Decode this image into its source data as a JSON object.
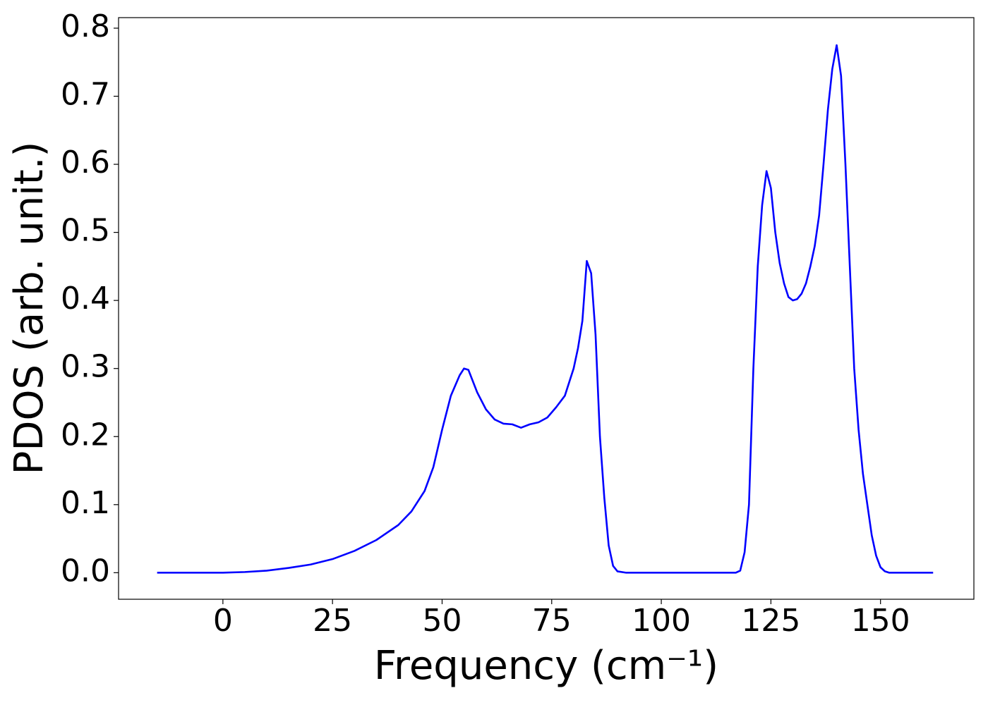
{
  "chart_data": {
    "type": "line",
    "xlabel": "Frequency (cm⁻¹)",
    "ylabel": "PDOS (arb. unit.)",
    "x": [
      -15,
      -10,
      -5,
      0,
      5,
      10,
      15,
      20,
      25,
      30,
      35,
      40,
      43,
      46,
      48,
      50,
      52,
      54,
      55,
      56,
      58,
      60,
      62,
      64,
      66,
      68,
      70,
      72,
      74,
      76,
      78,
      80,
      81,
      82,
      83,
      84,
      85,
      86,
      87,
      88,
      89,
      90,
      92,
      100,
      110,
      117,
      118,
      119,
      120,
      121,
      122,
      123,
      124,
      125,
      126,
      127,
      128,
      129,
      130,
      131,
      132,
      133,
      134,
      135,
      136,
      137,
      138,
      139,
      140,
      141,
      142,
      143,
      144,
      145,
      146,
      147,
      148,
      149,
      150,
      151,
      152,
      162
    ],
    "values": [
      0,
      0,
      0,
      0,
      0.001,
      0.003,
      0.007,
      0.012,
      0.02,
      0.032,
      0.048,
      0.07,
      0.09,
      0.12,
      0.155,
      0.21,
      0.26,
      0.29,
      0.3,
      0.298,
      0.265,
      0.24,
      0.225,
      0.219,
      0.218,
      0.213,
      0.218,
      0.221,
      0.228,
      0.243,
      0.26,
      0.3,
      0.33,
      0.37,
      0.458,
      0.44,
      0.35,
      0.2,
      0.11,
      0.04,
      0.01,
      0.002,
      0,
      0,
      0,
      0,
      0.003,
      0.03,
      0.1,
      0.3,
      0.45,
      0.54,
      0.59,
      0.565,
      0.5,
      0.455,
      0.425,
      0.405,
      0.4,
      0.402,
      0.41,
      0.425,
      0.45,
      0.48,
      0.525,
      0.6,
      0.68,
      0.74,
      0.775,
      0.73,
      0.6,
      0.45,
      0.3,
      0.21,
      0.145,
      0.1,
      0.055,
      0.025,
      0.008,
      0.002,
      0,
      0
    ],
    "color": "#0000ff",
    "xlim": [
      -23.8,
      171.3
    ],
    "xticks": [
      0,
      25,
      50,
      75,
      100,
      125,
      150
    ],
    "ylim": [
      -0.039,
      0.8155
    ],
    "yticks": [
      {
        "value": 0,
        "label": "0.0"
      },
      0.1,
      0.2,
      0.3,
      0.4,
      0.5,
      0.6,
      0.7,
      0.8
    ]
  }
}
